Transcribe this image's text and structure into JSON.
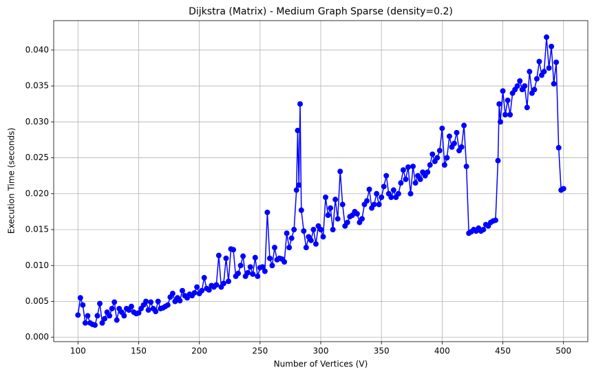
{
  "chart_data": {
    "type": "line",
    "title": "Dijkstra (Matrix) - Medium Graph Sparse (density=0.2)",
    "x_label": "Number of Vertices (V)",
    "y_label": "Execution Time (seconds)",
    "grid": true,
    "xlim": [
      80,
      520
    ],
    "ylim": [
      -0.0006,
      0.0441
    ],
    "xticks": [
      100,
      150,
      200,
      250,
      300,
      350,
      400,
      450,
      500
    ],
    "yticks": [
      {
        "value": 0,
        "label": "0.000"
      },
      {
        "value": 0.005,
        "label": "0.005"
      },
      {
        "value": 0.01,
        "label": "0.010"
      },
      {
        "value": 0.015,
        "label": "0.015"
      },
      {
        "value": 0.02,
        "label": "0.020"
      },
      {
        "value": 0.025,
        "label": "0.025"
      },
      {
        "value": 0.03,
        "label": "0.030"
      },
      {
        "value": 0.035,
        "label": "0.035"
      },
      {
        "value": 0.04,
        "label": "0.040"
      }
    ],
    "x": [
      100,
      102,
      104,
      106,
      108,
      110,
      112,
      114,
      116,
      118,
      120,
      122,
      124,
      126,
      128,
      130,
      132,
      134,
      136,
      138,
      140,
      142,
      144,
      146,
      148,
      150,
      152,
      154,
      156,
      158,
      160,
      162,
      164,
      166,
      168,
      170,
      172,
      174,
      176,
      178,
      180,
      182,
      184,
      186,
      188,
      190,
      192,
      194,
      196,
      198,
      200,
      202,
      204,
      206,
      208,
      210,
      212,
      214,
      216,
      218,
      220,
      222,
      224,
      226,
      228,
      230,
      232,
      234,
      236,
      238,
      240,
      242,
      244,
      246,
      248,
      250,
      252,
      254,
      256,
      258,
      260,
      262,
      264,
      266,
      268,
      270,
      272,
      274,
      276,
      278,
      280,
      281,
      282,
      283,
      284,
      286,
      288,
      290,
      292,
      294,
      296,
      298,
      300,
      302,
      304,
      306,
      308,
      310,
      312,
      314,
      316,
      318,
      320,
      322,
      324,
      326,
      328,
      330,
      332,
      334,
      336,
      338,
      340,
      342,
      344,
      346,
      348,
      350,
      352,
      354,
      356,
      358,
      360,
      362,
      364,
      366,
      368,
      370,
      372,
      374,
      376,
      378,
      380,
      382,
      384,
      386,
      388,
      390,
      392,
      394,
      396,
      398,
      400,
      402,
      404,
      406,
      408,
      410,
      412,
      414,
      416,
      418,
      420,
      422,
      424,
      426,
      428,
      430,
      432,
      434,
      436,
      438,
      440,
      442,
      444,
      446,
      447,
      448,
      450,
      452,
      454,
      456,
      458,
      460,
      462,
      464,
      466,
      468,
      470,
      472,
      474,
      476,
      478,
      480,
      482,
      484,
      486,
      488,
      490,
      492,
      494,
      496,
      498,
      500
    ],
    "series": [
      {
        "color": "#0000ff",
        "values": [
          0.0031,
          0.0055,
          0.0045,
          0.002,
          0.003,
          0.002,
          0.0018,
          0.0017,
          0.003,
          0.0047,
          0.002,
          0.0026,
          0.0035,
          0.003,
          0.004,
          0.0049,
          0.0024,
          0.004,
          0.0035,
          0.003,
          0.004,
          0.0038,
          0.0043,
          0.0035,
          0.0033,
          0.0034,
          0.004,
          0.0045,
          0.005,
          0.0038,
          0.0049,
          0.004,
          0.0036,
          0.005,
          0.004,
          0.0041,
          0.0043,
          0.0045,
          0.0056,
          0.0061,
          0.005,
          0.0055,
          0.0051,
          0.0065,
          0.0058,
          0.0055,
          0.006,
          0.0058,
          0.0062,
          0.007,
          0.0061,
          0.0065,
          0.0083,
          0.0068,
          0.0066,
          0.0072,
          0.007,
          0.0073,
          0.0114,
          0.007,
          0.0075,
          0.011,
          0.0078,
          0.0123,
          0.0122,
          0.0085,
          0.0089,
          0.01,
          0.0113,
          0.0085,
          0.009,
          0.0098,
          0.0088,
          0.0111,
          0.0085,
          0.0097,
          0.0098,
          0.0092,
          0.0174,
          0.011,
          0.01,
          0.0125,
          0.0108,
          0.011,
          0.0109,
          0.0105,
          0.0145,
          0.0125,
          0.0138,
          0.015,
          0.0205,
          0.0288,
          0.0212,
          0.0325,
          0.0177,
          0.0148,
          0.0125,
          0.014,
          0.0135,
          0.015,
          0.013,
          0.0155,
          0.015,
          0.014,
          0.0195,
          0.017,
          0.018,
          0.015,
          0.0192,
          0.0165,
          0.0231,
          0.0185,
          0.0155,
          0.016,
          0.0168,
          0.017,
          0.0175,
          0.0172,
          0.016,
          0.0165,
          0.0185,
          0.019,
          0.0206,
          0.018,
          0.0185,
          0.02,
          0.0185,
          0.0195,
          0.021,
          0.0225,
          0.02,
          0.0195,
          0.0205,
          0.0195,
          0.02,
          0.0215,
          0.0233,
          0.022,
          0.0237,
          0.02,
          0.0238,
          0.0215,
          0.0225,
          0.022,
          0.023,
          0.0225,
          0.023,
          0.024,
          0.0255,
          0.0245,
          0.025,
          0.026,
          0.0291,
          0.024,
          0.025,
          0.028,
          0.0265,
          0.027,
          0.0285,
          0.026,
          0.0265,
          0.0295,
          0.0238,
          0.0145,
          0.0147,
          0.015,
          0.0148,
          0.0152,
          0.0148,
          0.015,
          0.0157,
          0.0155,
          0.016,
          0.0162,
          0.0163,
          0.0246,
          0.0325,
          0.03,
          0.0343,
          0.031,
          0.033,
          0.031,
          0.034,
          0.0345,
          0.035,
          0.0357,
          0.0345,
          0.035,
          0.032,
          0.037,
          0.034,
          0.0345,
          0.036,
          0.0384,
          0.0365,
          0.037,
          0.0418,
          0.0375,
          0.0405,
          0.0353,
          0.0383,
          0.0264,
          0.0205,
          0.0207
        ]
      }
    ]
  }
}
